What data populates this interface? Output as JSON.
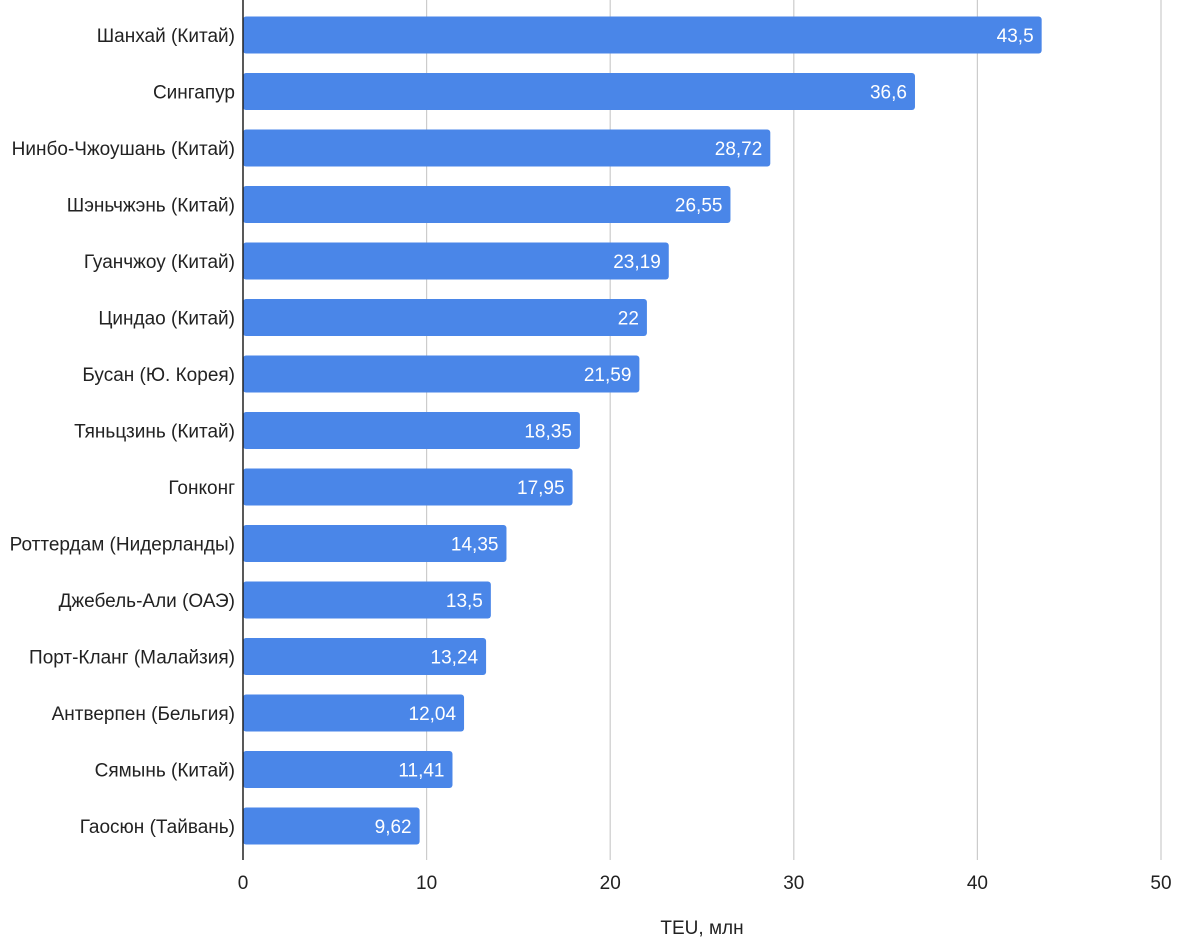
{
  "chart_data": {
    "type": "bar",
    "orientation": "horizontal",
    "categories": [
      "Шанхай (Китай)",
      "Сингапур",
      "Нинбо-Чжоушань (Китай)",
      "Шэньчжэнь (Китай)",
      "Гуанчжоу (Китай)",
      "Циндао (Китай)",
      "Бусан (Ю. Корея)",
      "Тяньцзинь (Китай)",
      "Гонконг",
      "Роттердам (Нидерланды)",
      "Джебель-Али (ОАЭ)",
      "Порт-Кланг (Малайзия)",
      "Антверпен (Бельгия)",
      "Сямынь (Китай)",
      "Гаосюн (Тайвань)"
    ],
    "values": [
      43.5,
      36.6,
      28.72,
      26.55,
      23.19,
      22,
      21.59,
      18.35,
      17.95,
      14.35,
      13.5,
      13.24,
      12.04,
      11.41,
      9.62
    ],
    "value_labels": [
      "43,5",
      "36,6",
      "28,72",
      "26,55",
      "23,19",
      "22",
      "21,59",
      "18,35",
      "17,95",
      "14,35",
      "13,5",
      "13,24",
      "12,04",
      "11,41",
      "9,62"
    ],
    "xlabel": "TEU, млн",
    "ylabel": "",
    "xlim": [
      0,
      50
    ],
    "xticks": [
      "0",
      "10",
      "20",
      "30",
      "40",
      "50"
    ],
    "grid": true,
    "legend": "none",
    "bar_color": "#4a86e8",
    "grid_color": "#cccccc",
    "axis_color": "#222222"
  }
}
